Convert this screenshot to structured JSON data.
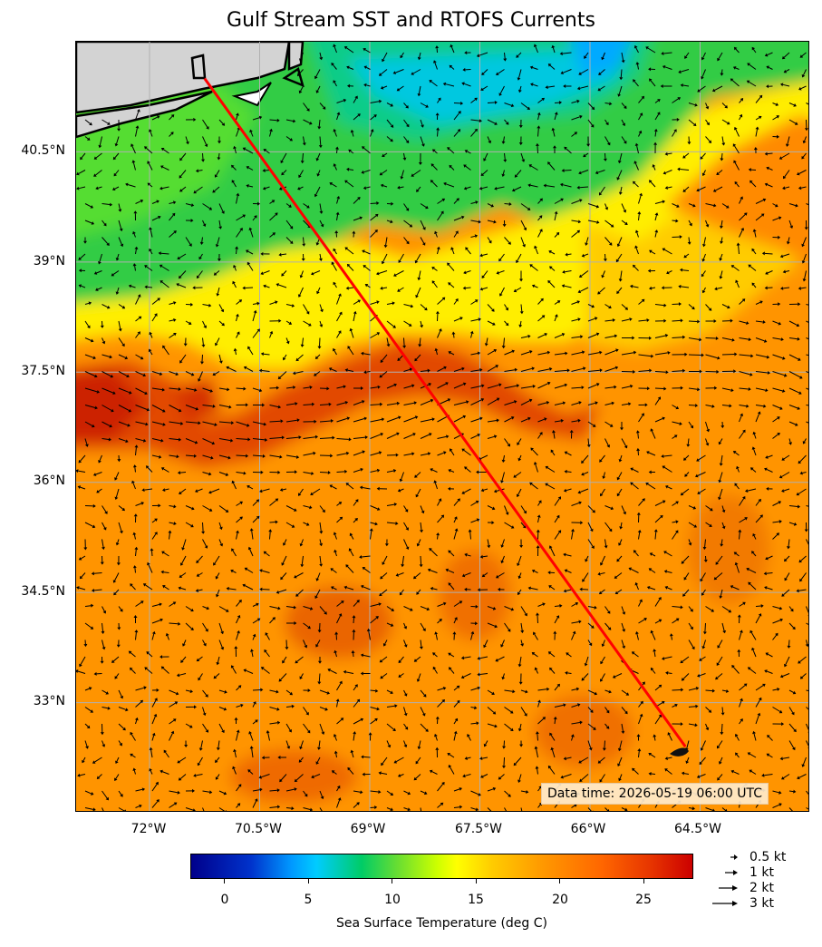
{
  "title": "Gulf Stream SST and RTOFS Currents",
  "lat_labels": [
    "40.5°N",
    "39°N",
    "37.5°N",
    "36°N",
    "34.5°N",
    "33°N"
  ],
  "lon_labels": [
    "72°W",
    "70.5°W",
    "69°W",
    "67.5°W",
    "66°W",
    "64.5°W"
  ],
  "data_time": "Data time: 2026-05-19 06:00 UTC",
  "colorbar": {
    "label": "Sea Surface Temperature (deg C)",
    "ticks": [
      "0",
      "5",
      "10",
      "15",
      "20",
      "25"
    ],
    "range": [
      -2,
      28
    ]
  },
  "speed_legend": [
    "0.5 kt",
    "1 kt",
    "2 kt",
    "3 kt"
  ],
  "map": {
    "lon_range": [
      -73,
      -63
    ],
    "lat_range": [
      31.5,
      42
    ],
    "gridlines": true,
    "track": {
      "start": [
        -71.25,
        41.5
      ],
      "end": [
        -64.7,
        32.4
      ]
    },
    "colors": {
      "land": "#d3d3d3",
      "track": "#ff0000",
      "arrows": "#000000",
      "grid": "#b0b0b0"
    }
  }
}
